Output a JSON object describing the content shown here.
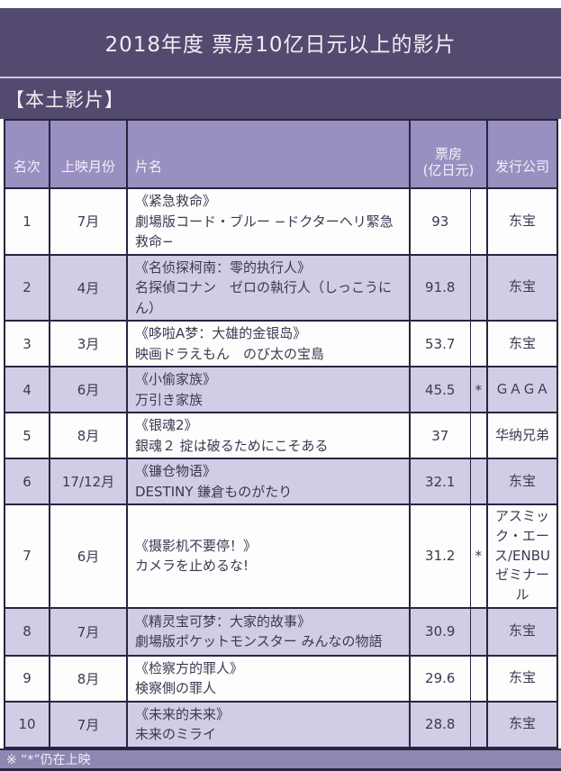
{
  "title_banner": "2018年度 票房10亿日元以上的影片",
  "section_banner": "【本土影片】",
  "table": {
    "headers": {
      "rank": "名次",
      "month": "上映月份",
      "title": "片名",
      "boxoffice": "票房\n(亿日元)",
      "distributor": "发行公司"
    },
    "rows": [
      {
        "rank": "1",
        "month": "7月",
        "title_cn": "《紧急救命》",
        "title_jp": "劇場版コード・ブルー −ドクターヘリ緊急救命−",
        "boxoffice": "93",
        "flag": "",
        "distributor": "东宝"
      },
      {
        "rank": "2",
        "month": "4月",
        "title_cn": "《名侦探柯南：零的执行人》",
        "title_jp": "名探偵コナン　ゼロの執行人（しっこうにん）",
        "boxoffice": "91.8",
        "flag": "",
        "distributor": "东宝"
      },
      {
        "rank": "3",
        "month": "3月",
        "title_cn": "《哆啦A梦：大雄的金银岛》",
        "title_jp": "映画ドラえもん　のび太の宝島",
        "boxoffice": "53.7",
        "flag": "",
        "distributor": "东宝"
      },
      {
        "rank": "4",
        "month": "6月",
        "title_cn": "《小偷家族》",
        "title_jp": "万引き家族",
        "boxoffice": "45.5",
        "flag": "*",
        "distributor": "ＧＡＧＡ"
      },
      {
        "rank": "5",
        "month": "8月",
        "title_cn": "《银魂2》",
        "title_jp": "銀魂２ 掟は破るためにこそある",
        "boxoffice": "37",
        "flag": "",
        "distributor": "华纳兄弟"
      },
      {
        "rank": "6",
        "month": "17/12月",
        "title_cn": "《镰仓物语》",
        "title_jp": "DESTINY 鎌倉ものがたり",
        "boxoffice": "32.1",
        "flag": "",
        "distributor": "东宝"
      },
      {
        "rank": "7",
        "month": "6月",
        "title_cn": "《摄影机不要停！》",
        "title_jp": "カメラを止めるな!",
        "boxoffice": "31.2",
        "flag": "*",
        "distributor": "アスミック・エース/ENBUゼミナール"
      },
      {
        "rank": "8",
        "month": "7月",
        "title_cn": "《精灵宝可梦：大家的故事》",
        "title_jp": "劇場版ポケットモンスター みんなの物語",
        "boxoffice": "30.9",
        "flag": "",
        "distributor": "东宝"
      },
      {
        "rank": "9",
        "month": "8月",
        "title_cn": "《检察方的罪人》",
        "title_jp": "検察側の罪人",
        "boxoffice": "29.6",
        "flag": "",
        "distributor": "东宝"
      },
      {
        "rank": "10",
        "month": "7月",
        "title_cn": "《未来的未来》",
        "title_jp": "未来のミライ",
        "boxoffice": "28.8",
        "flag": "",
        "distributor": "东宝"
      }
    ]
  },
  "footer_note": "※ “*”仍在上映",
  "colors": {
    "banner_purple": "#544a6f",
    "header_lavender": "#998fc1",
    "row_alt_lavender": "#d2cce6",
    "row_white": "#fdfdfd",
    "footer_purple": "#8e87b2",
    "border_dark": "#262640",
    "text_dark": "#3a3a52",
    "text_light": "#f2edf5"
  }
}
